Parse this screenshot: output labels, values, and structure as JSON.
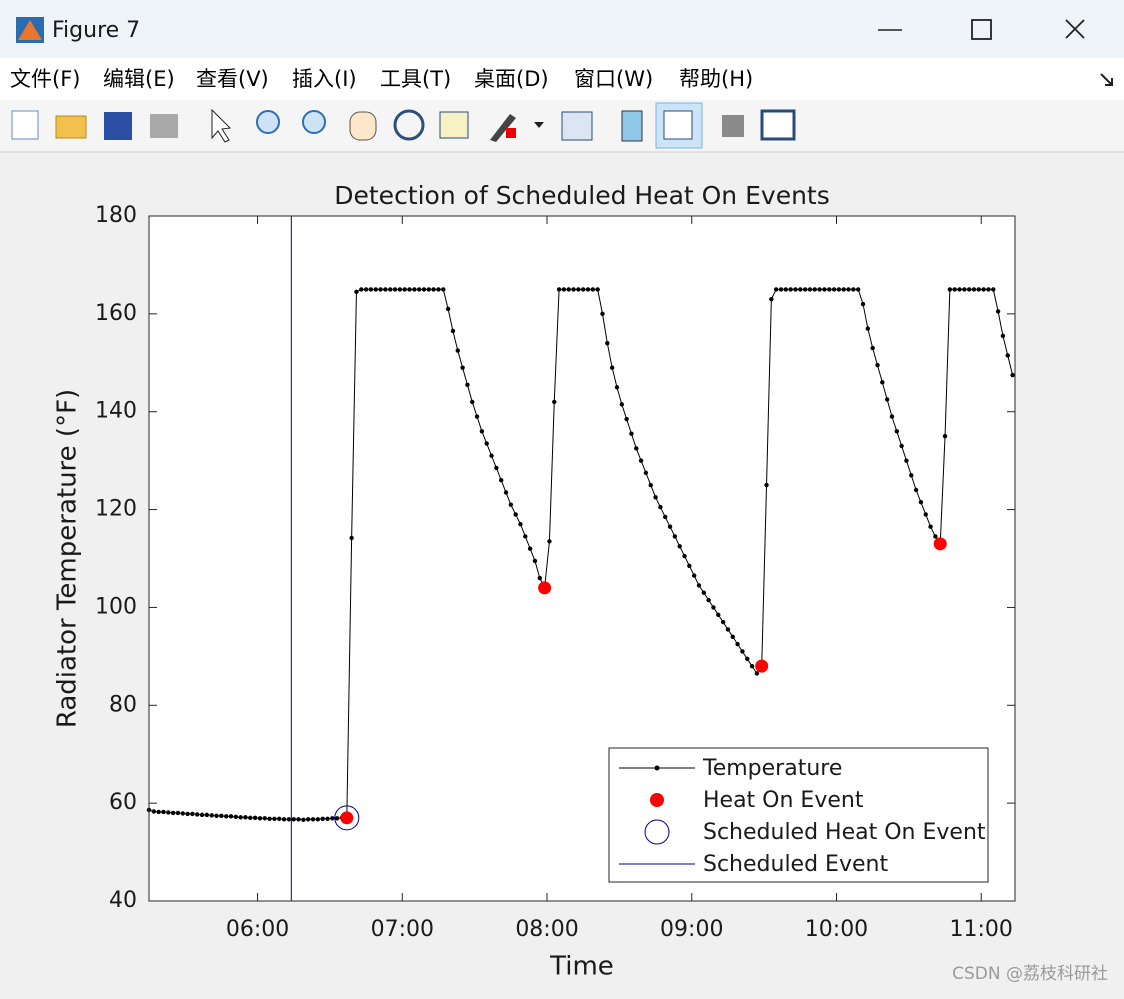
{
  "window": {
    "title": "Figure 7",
    "menu": [
      "文件(F)",
      "编辑(E)",
      "查看(V)",
      "插入(I)",
      "工具(T)",
      "桌面(D)",
      "窗口(W)",
      "帮助(H)"
    ]
  },
  "watermark": "CSDN @荔枝科研社",
  "chart_data": {
    "type": "line",
    "title": "Detection of Scheduled Heat On Events",
    "xlabel": "Time",
    "ylabel": "Radiator Temperature (°F)",
    "xlim": [
      315,
      674
    ],
    "xticks": [
      {
        "value": 360,
        "label": "06:00"
      },
      {
        "value": 420,
        "label": "07:00"
      },
      {
        "value": 480,
        "label": "08:00"
      },
      {
        "value": 540,
        "label": "09:00"
      },
      {
        "value": 600,
        "label": "10:00"
      },
      {
        "value": 660,
        "label": "11:00"
      }
    ],
    "ylim": [
      40,
      180
    ],
    "yticks": [
      40,
      60,
      80,
      100,
      120,
      140,
      160,
      180
    ],
    "legend": "lower right",
    "series": [
      {
        "name": "Temperature",
        "color": "#000000",
        "style": "line-dots",
        "x": [
          315,
          317,
          319,
          321,
          323,
          325,
          327,
          329,
          331,
          333,
          335,
          337,
          339,
          341,
          343,
          345,
          347,
          349,
          351,
          353,
          355,
          357,
          359,
          361,
          363,
          365,
          367,
          369,
          371,
          373,
          375,
          377,
          379,
          381,
          383,
          385,
          387,
          389,
          391,
          393,
          395,
          397,
          399,
          401,
          403,
          405,
          407,
          409,
          411,
          413,
          415,
          417,
          419,
          421,
          423,
          425,
          427,
          429,
          431,
          433,
          435,
          437,
          439,
          441,
          443,
          445,
          447,
          449,
          451,
          453,
          455,
          457,
          459,
          461,
          463,
          465,
          467,
          469,
          471,
          473,
          475,
          477,
          479,
          481,
          483,
          485,
          487,
          489,
          491,
          493,
          495,
          497,
          499,
          501,
          503,
          505,
          507,
          509,
          511,
          513,
          515,
          517,
          519,
          521,
          523,
          525,
          527,
          529,
          531,
          533,
          535,
          537,
          539,
          541,
          543,
          545,
          547,
          549,
          551,
          553,
          555,
          557,
          559,
          561,
          563,
          565,
          567,
          569,
          571,
          573,
          575,
          577,
          579,
          581,
          583,
          585,
          587,
          589,
          591,
          593,
          595,
          597,
          599,
          601,
          603,
          605,
          607,
          609,
          611,
          613,
          615,
          617,
          619,
          621,
          623,
          625,
          627,
          629,
          631,
          633,
          635,
          637,
          639,
          641,
          643,
          645,
          647,
          649,
          651,
          653,
          655,
          657,
          659,
          661,
          663,
          665,
          667,
          669,
          671,
          673
        ],
        "values": [
          58.6,
          58.3,
          58.2,
          58.2,
          58.1,
          58.0,
          58.0,
          57.9,
          57.8,
          57.8,
          57.7,
          57.6,
          57.6,
          57.5,
          57.4,
          57.4,
          57.3,
          57.3,
          57.2,
          57.1,
          57.1,
          57.0,
          57.0,
          56.9,
          56.9,
          56.8,
          56.8,
          56.8,
          56.7,
          56.7,
          56.7,
          56.7,
          56.6,
          56.7,
          56.7,
          56.7,
          56.8,
          56.8,
          56.9,
          56.9,
          57.0,
          57.0,
          114.2,
          164.5,
          165,
          165,
          165,
          165,
          165,
          165,
          165,
          165,
          165,
          165,
          165,
          165,
          165,
          165,
          165,
          165,
          165,
          165,
          161,
          156.5,
          152.5,
          149,
          145.5,
          142,
          139,
          136,
          133.5,
          131,
          128.5,
          126,
          123.5,
          121,
          119,
          117,
          114.5,
          112,
          109.5,
          106,
          104,
          113.5,
          142,
          165,
          165,
          165,
          165,
          165,
          165,
          165,
          165,
          165,
          160,
          154,
          149,
          145,
          141.5,
          138.5,
          135.5,
          132.5,
          130,
          127.5,
          125,
          122.5,
          120.5,
          118.5,
          116.5,
          114.5,
          112.5,
          110.5,
          108.5,
          106.5,
          104.5,
          103,
          101.5,
          100,
          98.5,
          97,
          95.5,
          94,
          92.5,
          91,
          89.5,
          88,
          86.5,
          88,
          125,
          163,
          165,
          165,
          165,
          165,
          165,
          165,
          165,
          165,
          165,
          165,
          165,
          165,
          165,
          165,
          165,
          165,
          165,
          165,
          162,
          157,
          153,
          149.5,
          146,
          142.5,
          139,
          136,
          133,
          130,
          127,
          124,
          121.5,
          119,
          116.5,
          114.5,
          113,
          135,
          165,
          165,
          165,
          165,
          165,
          165,
          165,
          165,
          165,
          165,
          160.5,
          155.5,
          151.5,
          147.5
        ]
      },
      {
        "name": "Heat On Event",
        "color": "#ff0000",
        "style": "dots",
        "x": [
          397,
          479,
          569,
          643
        ],
        "values": [
          57,
          104,
          88,
          113
        ]
      },
      {
        "name": "Scheduled Heat On Event",
        "color": "#00008b",
        "style": "circles",
        "x": [
          397
        ],
        "values": [
          57
        ]
      },
      {
        "name": "Scheduled Event",
        "color": "#00008b",
        "style": "vline",
        "x": [
          374
        ]
      }
    ]
  }
}
